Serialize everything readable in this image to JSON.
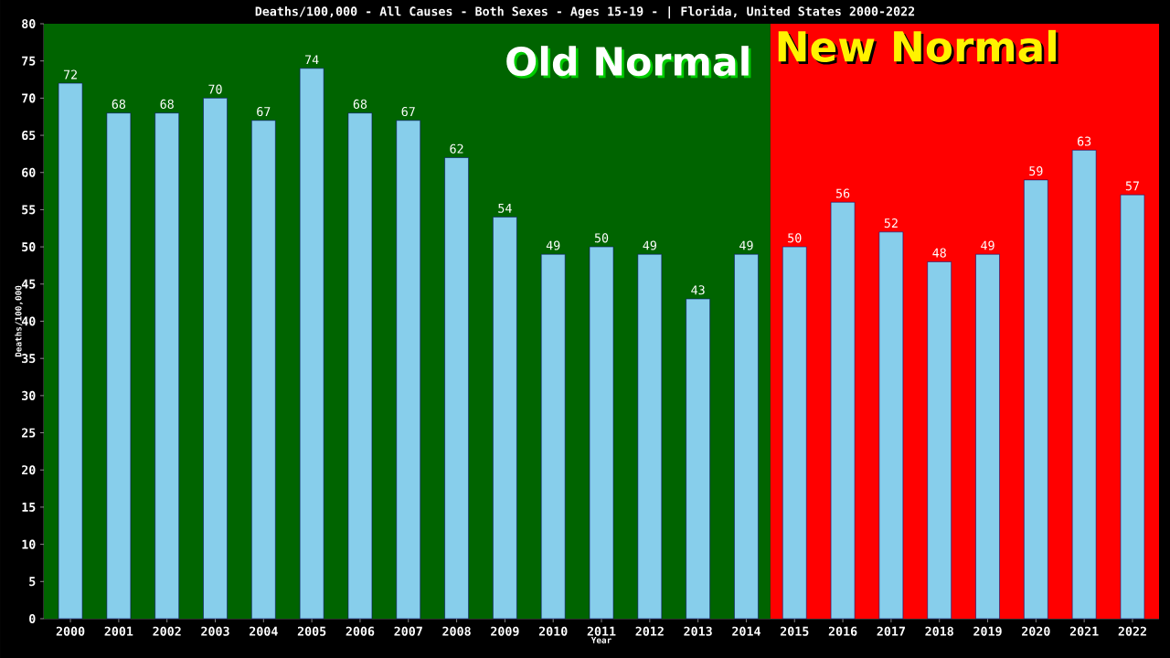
{
  "chart_data": {
    "type": "bar",
    "title": "Deaths/100,000 - All Causes - Both Sexes - Ages 15-19 -  | Florida, United States 2000-2022",
    "xlabel": "Year",
    "ylabel": "Deaths/100,000",
    "categories": [
      "2000",
      "2001",
      "2002",
      "2003",
      "2004",
      "2005",
      "2006",
      "2007",
      "2008",
      "2009",
      "2010",
      "2011",
      "2012",
      "2013",
      "2014",
      "2015",
      "2016",
      "2017",
      "2018",
      "2019",
      "2020",
      "2021",
      "2022"
    ],
    "values": [
      72,
      68,
      68,
      70,
      67,
      74,
      68,
      67,
      62,
      54,
      49,
      50,
      49,
      43,
      49,
      50,
      56,
      52,
      48,
      49,
      59,
      63,
      57
    ],
    "color": "#87ceeb",
    "ylim": [
      0,
      80
    ],
    "yticks": [
      0,
      5,
      10,
      15,
      20,
      25,
      30,
      35,
      40,
      45,
      50,
      55,
      60,
      65,
      70,
      75,
      80
    ],
    "data_labels": true,
    "grid": false,
    "bands": [
      {
        "axis": "x",
        "from": "2000",
        "to": "2014",
        "label": "Old Normal",
        "color": "#006400"
      },
      {
        "axis": "x",
        "from": "2015",
        "to": "2022",
        "label": "New Normal",
        "color": "#ff0000"
      }
    ]
  }
}
